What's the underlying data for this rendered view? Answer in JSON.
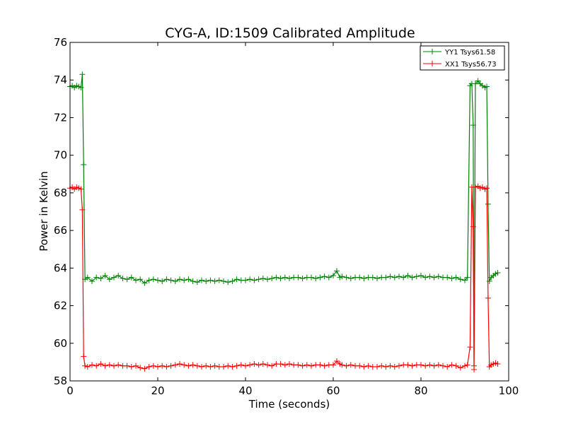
{
  "chart_data": {
    "type": "line",
    "title": "CYG-A, ID:1509 Calibrated Amplitude",
    "xlabel": "Time (seconds)",
    "ylabel": "Power in Kelvin",
    "xlim": [
      0,
      100
    ],
    "ylim": [
      58,
      76
    ],
    "xticks": [
      0,
      20,
      40,
      60,
      80,
      100
    ],
    "yticks": [
      58,
      60,
      62,
      64,
      66,
      68,
      70,
      72,
      74,
      76
    ],
    "xtick_labels": [
      "0",
      "20",
      "40",
      "60",
      "80",
      "100"
    ],
    "ytick_labels": [
      "58",
      "60",
      "62",
      "64",
      "66",
      "68",
      "70",
      "72",
      "74",
      "76"
    ],
    "grid": false,
    "legend_position": "top-right",
    "marker": "plus",
    "series": [
      {
        "name": "YY1 Tsys61.58",
        "color": "#008000",
        "points": [
          [
            0,
            73.65
          ],
          [
            0.5,
            73.7
          ],
          [
            1,
            73.6
          ],
          [
            1.5,
            73.7
          ],
          [
            2,
            73.65
          ],
          [
            2.5,
            73.6
          ],
          [
            2.8,
            74.3
          ],
          [
            3.1,
            69.5
          ],
          [
            3.4,
            63.4
          ],
          [
            4,
            63.5
          ],
          [
            5,
            63.3
          ],
          [
            6,
            63.5
          ],
          [
            7,
            63.45
          ],
          [
            8,
            63.6
          ],
          [
            9,
            63.4
          ],
          [
            10,
            63.5
          ],
          [
            11,
            63.6
          ],
          [
            12,
            63.45
          ],
          [
            13,
            63.4
          ],
          [
            14,
            63.5
          ],
          [
            15,
            63.35
          ],
          [
            16,
            63.4
          ],
          [
            17,
            63.2
          ],
          [
            18,
            63.35
          ],
          [
            19,
            63.4
          ],
          [
            20,
            63.35
          ],
          [
            21,
            63.3
          ],
          [
            22,
            63.4
          ],
          [
            23,
            63.35
          ],
          [
            24,
            63.3
          ],
          [
            25,
            63.4
          ],
          [
            26,
            63.35
          ],
          [
            27,
            63.4
          ],
          [
            28,
            63.3
          ],
          [
            29,
            63.25
          ],
          [
            30,
            63.35
          ],
          [
            31,
            63.3
          ],
          [
            32,
            63.35
          ],
          [
            33,
            63.3
          ],
          [
            34,
            63.35
          ],
          [
            35,
            63.3
          ],
          [
            36,
            63.25
          ],
          [
            37,
            63.3
          ],
          [
            38,
            63.4
          ],
          [
            39,
            63.35
          ],
          [
            40,
            63.35
          ],
          [
            41,
            63.4
          ],
          [
            42,
            63.35
          ],
          [
            43,
            63.4
          ],
          [
            44,
            63.45
          ],
          [
            45,
            63.4
          ],
          [
            46,
            63.45
          ],
          [
            47,
            63.5
          ],
          [
            48,
            63.45
          ],
          [
            49,
            63.5
          ],
          [
            50,
            63.45
          ],
          [
            51,
            63.5
          ],
          [
            52,
            63.5
          ],
          [
            53,
            63.45
          ],
          [
            54,
            63.5
          ],
          [
            55,
            63.5
          ],
          [
            56,
            63.45
          ],
          [
            57,
            63.5
          ],
          [
            58,
            63.55
          ],
          [
            59,
            63.5
          ],
          [
            60,
            63.6
          ],
          [
            60.8,
            63.85
          ],
          [
            61.5,
            63.5
          ],
          [
            62,
            63.55
          ],
          [
            63,
            63.5
          ],
          [
            64,
            63.45
          ],
          [
            65,
            63.5
          ],
          [
            66,
            63.5
          ],
          [
            67,
            63.45
          ],
          [
            68,
            63.5
          ],
          [
            69,
            63.5
          ],
          [
            70,
            63.45
          ],
          [
            71,
            63.5
          ],
          [
            72,
            63.5
          ],
          [
            73,
            63.55
          ],
          [
            74,
            63.5
          ],
          [
            75,
            63.55
          ],
          [
            76,
            63.5
          ],
          [
            77,
            63.6
          ],
          [
            78,
            63.5
          ],
          [
            79,
            63.55
          ],
          [
            80,
            63.6
          ],
          [
            81,
            63.5
          ],
          [
            82,
            63.55
          ],
          [
            83,
            63.5
          ],
          [
            84,
            63.55
          ],
          [
            85,
            63.5
          ],
          [
            86,
            63.5
          ],
          [
            87,
            63.45
          ],
          [
            88,
            63.5
          ],
          [
            89,
            63.4
          ],
          [
            90,
            63.35
          ],
          [
            90.6,
            63.5
          ],
          [
            91.2,
            73.7
          ],
          [
            91.6,
            73.8
          ],
          [
            91.9,
            71.6
          ],
          [
            92.1,
            58.8
          ],
          [
            92.4,
            73.8
          ],
          [
            93,
            73.95
          ],
          [
            93.5,
            73.8
          ],
          [
            94,
            73.7
          ],
          [
            94.6,
            73.6
          ],
          [
            95,
            73.65
          ],
          [
            95.3,
            67.4
          ],
          [
            95.6,
            63.3
          ],
          [
            96,
            63.5
          ],
          [
            96.5,
            63.6
          ],
          [
            97,
            63.7
          ],
          [
            97.5,
            63.75
          ]
        ]
      },
      {
        "name": "XX1 Tsys56.73",
        "color": "#ff0000",
        "points": [
          [
            0,
            68.25
          ],
          [
            0.5,
            68.3
          ],
          [
            1,
            68.2
          ],
          [
            1.5,
            68.3
          ],
          [
            2,
            68.25
          ],
          [
            2.5,
            68.2
          ],
          [
            2.8,
            67.1
          ],
          [
            3.1,
            59.3
          ],
          [
            3.4,
            58.8
          ],
          [
            4,
            58.75
          ],
          [
            5,
            58.85
          ],
          [
            6,
            58.8
          ],
          [
            7,
            58.9
          ],
          [
            8,
            58.8
          ],
          [
            9,
            58.85
          ],
          [
            10,
            58.8
          ],
          [
            11,
            58.85
          ],
          [
            12,
            58.8
          ],
          [
            13,
            58.8
          ],
          [
            14,
            58.75
          ],
          [
            15,
            58.8
          ],
          [
            16,
            58.7
          ],
          [
            17,
            58.65
          ],
          [
            18,
            58.75
          ],
          [
            19,
            58.8
          ],
          [
            20,
            58.75
          ],
          [
            21,
            58.8
          ],
          [
            22,
            58.75
          ],
          [
            23,
            58.8
          ],
          [
            24,
            58.85
          ],
          [
            25,
            58.9
          ],
          [
            26,
            58.85
          ],
          [
            27,
            58.8
          ],
          [
            28,
            58.85
          ],
          [
            29,
            58.8
          ],
          [
            30,
            58.75
          ],
          [
            31,
            58.8
          ],
          [
            32,
            58.75
          ],
          [
            33,
            58.8
          ],
          [
            34,
            58.75
          ],
          [
            35,
            58.75
          ],
          [
            36,
            58.8
          ],
          [
            37,
            58.75
          ],
          [
            38,
            58.8
          ],
          [
            39,
            58.85
          ],
          [
            40,
            58.8
          ],
          [
            41,
            58.85
          ],
          [
            42,
            58.9
          ],
          [
            43,
            58.85
          ],
          [
            44,
            58.9
          ],
          [
            45,
            58.85
          ],
          [
            46,
            58.8
          ],
          [
            47,
            58.9
          ],
          [
            48,
            58.9
          ],
          [
            49,
            58.85
          ],
          [
            50,
            58.9
          ],
          [
            51,
            58.85
          ],
          [
            52,
            58.85
          ],
          [
            53,
            58.8
          ],
          [
            54,
            58.85
          ],
          [
            55,
            58.8
          ],
          [
            56,
            58.85
          ],
          [
            57,
            58.85
          ],
          [
            58,
            58.8
          ],
          [
            59,
            58.85
          ],
          [
            60,
            58.85
          ],
          [
            60.8,
            59.05
          ],
          [
            61.5,
            58.9
          ],
          [
            62,
            58.85
          ],
          [
            63,
            58.8
          ],
          [
            64,
            58.85
          ],
          [
            65,
            58.8
          ],
          [
            66,
            58.8
          ],
          [
            67,
            58.75
          ],
          [
            68,
            58.8
          ],
          [
            69,
            58.75
          ],
          [
            70,
            58.75
          ],
          [
            71,
            58.8
          ],
          [
            72,
            58.75
          ],
          [
            73,
            58.8
          ],
          [
            74,
            58.75
          ],
          [
            75,
            58.8
          ],
          [
            76,
            58.85
          ],
          [
            77,
            58.85
          ],
          [
            78,
            58.8
          ],
          [
            79,
            58.85
          ],
          [
            80,
            58.85
          ],
          [
            81,
            58.8
          ],
          [
            82,
            58.85
          ],
          [
            83,
            58.8
          ],
          [
            84,
            58.85
          ],
          [
            85,
            58.8
          ],
          [
            86,
            58.75
          ],
          [
            87,
            58.85
          ],
          [
            88,
            58.8
          ],
          [
            89,
            58.7
          ],
          [
            90,
            58.8
          ],
          [
            90.6,
            58.85
          ],
          [
            91.2,
            59.8
          ],
          [
            91.6,
            68.3
          ],
          [
            91.9,
            66.2
          ],
          [
            92.1,
            58.6
          ],
          [
            92.4,
            68.3
          ],
          [
            93,
            68.35
          ],
          [
            93.5,
            68.25
          ],
          [
            94,
            68.3
          ],
          [
            94.6,
            68.2
          ],
          [
            95,
            68.25
          ],
          [
            95.3,
            62.4
          ],
          [
            95.6,
            58.75
          ],
          [
            96,
            58.85
          ],
          [
            96.5,
            58.9
          ],
          [
            97,
            58.95
          ],
          [
            97.5,
            58.9
          ]
        ]
      }
    ]
  }
}
